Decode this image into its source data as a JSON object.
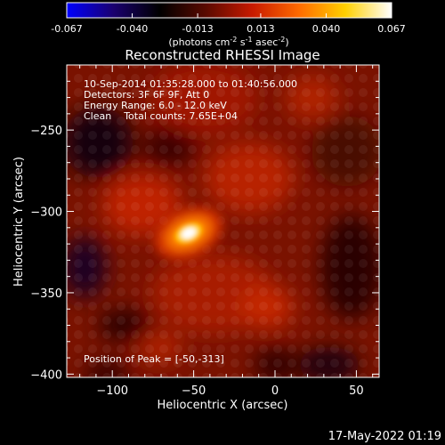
{
  "colorbar": {
    "min": -0.067,
    "max": 0.067,
    "ticks": [
      "-0.067",
      "-0.040",
      "-0.013",
      "0.013",
      "0.040",
      "0.067"
    ],
    "tick_values": [
      -0.067,
      -0.04,
      -0.013,
      0.013,
      0.04,
      0.067
    ],
    "label_prefix": "(photons cm",
    "exp1": "-2",
    "mid": " s",
    "exp2": "-1",
    "mid2": " asec",
    "exp3": "-2",
    "suffix": ")",
    "colors": [
      "#0000ff",
      "#1a0070",
      "#000000",
      "#5a0a00",
      "#c81a00",
      "#ff6a00",
      "#ffd000",
      "#ffffff"
    ]
  },
  "chart_data": {
    "type": "heatmap",
    "title": "Reconstructed RHESSI Image",
    "xlabel": "Heliocentric X (arcsec)",
    "ylabel": "Heliocentric Y (arcsec)",
    "xlim": [
      -128,
      64
    ],
    "ylim": [
      -402,
      -210
    ],
    "xticks": [
      -100,
      -50,
      0,
      50
    ],
    "yticks": [
      -400,
      -350,
      -300,
      -250
    ],
    "peak": [
      -50,
      -313
    ],
    "annotations": {
      "line1": "10-Sep-2014 01:35:28.000 to 01:40:56.000",
      "line2": "Detectors: 3F 6F 9F, Att 0",
      "line3": "Energy Range: 6.0 - 12.0 keV",
      "line4": "Clean    Total counts: 7.65E+04",
      "peak_text": "Position of Peak = [-50,-313]"
    }
  },
  "footer": {
    "timestamp": "17-May-2022 01:19"
  }
}
